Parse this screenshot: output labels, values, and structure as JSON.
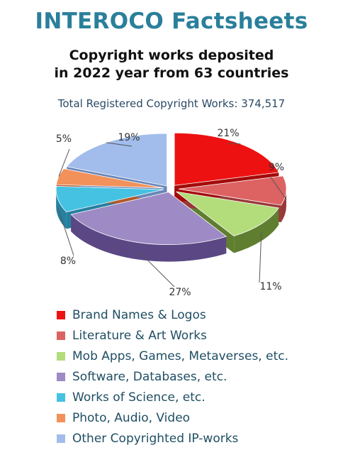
{
  "title": "INTEROCO Factsheets",
  "subtitle_line1": "Copyright works deposited",
  "subtitle_line2": "in 2022 year from 63 countries",
  "total_text": "Total Registered Copyright Works: 374,517",
  "chart_data": {
    "type": "pie",
    "style": "3d-exploded",
    "slices": [
      {
        "name": "Brand Names & Logos",
        "value": 21,
        "label": "21%",
        "color": "#ee1111",
        "side": "#a40b0b"
      },
      {
        "name": "Literature & Art Works",
        "value": 9,
        "label": "9%",
        "color": "#dd6262",
        "side": "#993838"
      },
      {
        "name": "Mob Apps, Games, Metaverses, etc.",
        "value": 11,
        "label": "11%",
        "color": "#b3dc7b",
        "side": "#5f7e30"
      },
      {
        "name": "Software, Databases, etc.",
        "value": 27,
        "label": "27%",
        "color": "#9e8ac4",
        "side": "#5a4784"
      },
      {
        "name": "Works of Science, etc.",
        "value": 8,
        "label": "8%",
        "color": "#45c2e2",
        "side": "#2680a0"
      },
      {
        "name": "Photo, Audio, Video",
        "value": 5,
        "label": "5%",
        "color": "#f2915a",
        "side": "#b3592a"
      },
      {
        "name": "Other Copyrighted IP-works",
        "value": 19,
        "label": "19%",
        "color": "#a2bdec",
        "side": "#6a86b8"
      }
    ],
    "legend": "bottom"
  }
}
